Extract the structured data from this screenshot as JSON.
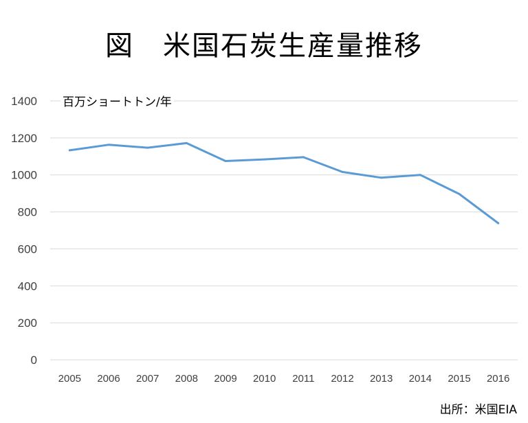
{
  "chart_data": {
    "type": "line",
    "title": "図　米国石炭生産量推移",
    "unit_label": "百万ショートトン/年",
    "source": "出所：米国EIA",
    "categories": [
      "2005",
      "2006",
      "2007",
      "2008",
      "2009",
      "2010",
      "2011",
      "2012",
      "2013",
      "2014",
      "2015",
      "2016"
    ],
    "series": [
      {
        "values": [
          1133,
          1163,
          1147,
          1172,
          1075,
          1084,
          1096,
          1016,
          985,
          1000,
          897,
          739
        ]
      }
    ],
    "ylim": [
      0,
      1400
    ],
    "yticks": [
      "0",
      "200",
      "400",
      "600",
      "800",
      "1000",
      "1200",
      "1400"
    ],
    "grid": true,
    "line_color": "#5b9bd5",
    "grid_color": "#d9d9d9"
  }
}
